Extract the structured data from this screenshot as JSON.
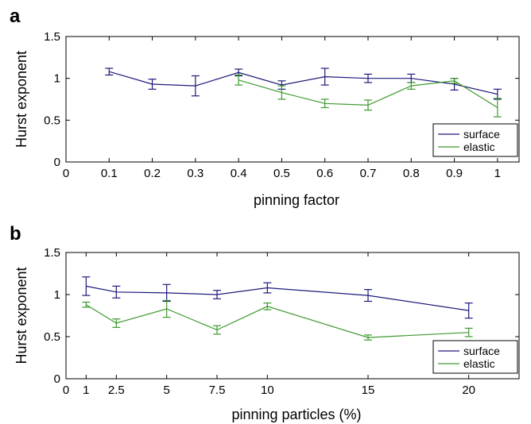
{
  "colors": {
    "surface": "#1c1a7a",
    "elastic": "#3d9a2d",
    "axis": "#000000"
  },
  "chart_data": [
    {
      "type": "line",
      "panel_label": "a",
      "xlabel": "pinning factor",
      "ylabel": "Hurst exponent",
      "xlim": [
        0,
        1.05
      ],
      "ylim": [
        0,
        1.5
      ],
      "xticks": [
        0,
        0.1,
        0.2,
        0.3,
        0.4,
        0.5,
        0.6,
        0.7,
        0.8,
        0.9,
        1
      ],
      "xtick_labels": [
        "0",
        "0.1",
        "0.2",
        "0.3",
        "0.4",
        "0.5",
        "0.6",
        "0.7",
        "0.8",
        "0.9",
        "1"
      ],
      "yticks": [
        0,
        0.5,
        1,
        1.5
      ],
      "ytick_labels": [
        "0",
        "0.5",
        "1",
        "1.5"
      ],
      "legend_position": "bottom-right",
      "series": [
        {
          "name": "surface",
          "color_key": "surface",
          "x": [
            0.1,
            0.2,
            0.3,
            0.4,
            0.5,
            0.6,
            0.7,
            0.8,
            0.9,
            1.0
          ],
          "y": [
            1.08,
            0.93,
            0.91,
            1.07,
            0.92,
            1.02,
            1.0,
            1.0,
            0.93,
            0.81
          ],
          "err": [
            0.04,
            0.06,
            0.12,
            0.04,
            0.05,
            0.1,
            0.05,
            0.05,
            0.07,
            0.06
          ]
        },
        {
          "name": "elastic",
          "color_key": "elastic",
          "x": [
            0.4,
            0.5,
            0.6,
            0.7,
            0.8,
            0.9,
            1.0
          ],
          "y": [
            0.98,
            0.83,
            0.7,
            0.68,
            0.91,
            0.97,
            0.65
          ],
          "err": [
            0.06,
            0.08,
            0.05,
            0.06,
            0.04,
            0.03,
            0.11
          ]
        }
      ]
    },
    {
      "type": "line",
      "panel_label": "b",
      "xlabel": "pinning particles (%)",
      "ylabel": "Hurst exponent",
      "xlim": [
        0,
        22.5
      ],
      "ylim": [
        0,
        1.5
      ],
      "xticks": [
        0,
        1,
        2.5,
        5,
        7.5,
        10,
        15,
        20
      ],
      "xtick_labels": [
        "0",
        "1",
        "2.5",
        "5",
        "7.5",
        "10",
        "15",
        "20"
      ],
      "yticks": [
        0,
        0.5,
        1,
        1.5
      ],
      "ytick_labels": [
        "0",
        "0.5",
        "1",
        "1.5"
      ],
      "legend_position": "bottom-right",
      "series": [
        {
          "name": "surface",
          "color_key": "surface",
          "x": [
            1,
            2.5,
            5,
            7.5,
            10,
            15,
            20
          ],
          "y": [
            1.1,
            1.03,
            1.02,
            1.0,
            1.08,
            0.99,
            0.81
          ],
          "err": [
            0.11,
            0.07,
            0.1,
            0.05,
            0.06,
            0.07,
            0.09
          ]
        },
        {
          "name": "elastic",
          "color_key": "elastic",
          "x": [
            1,
            2.5,
            5,
            7.5,
            10,
            15,
            20
          ],
          "y": [
            0.88,
            0.66,
            0.83,
            0.58,
            0.86,
            0.49,
            0.55
          ],
          "err": [
            0.03,
            0.05,
            0.1,
            0.05,
            0.04,
            0.03,
            0.05
          ]
        }
      ]
    }
  ]
}
